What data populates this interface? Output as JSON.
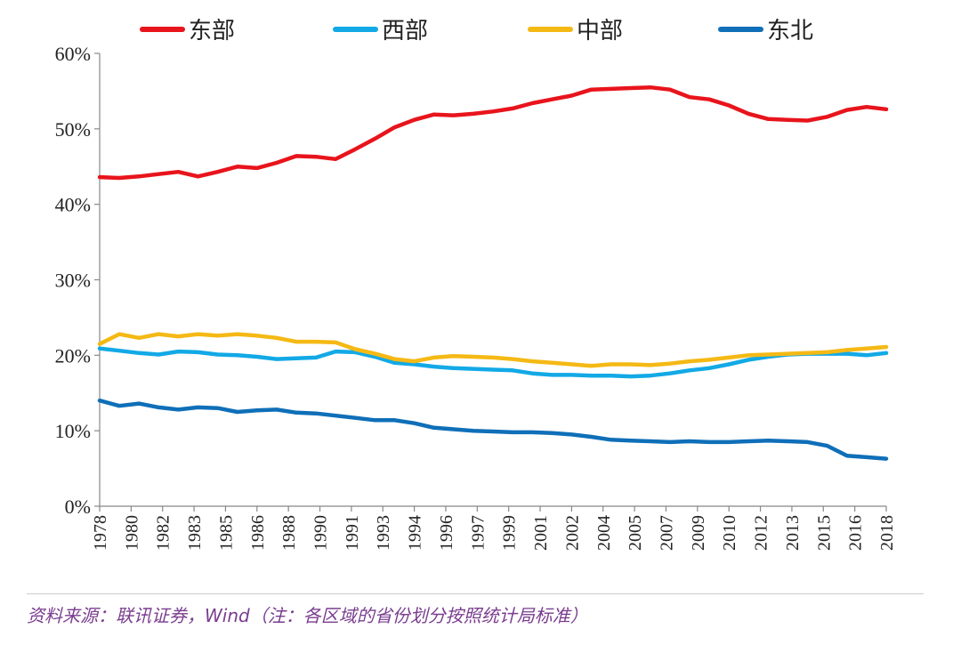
{
  "chart_data": {
    "type": "line",
    "title": "",
    "xlabel": "",
    "ylabel": "",
    "ylim": [
      0,
      60
    ],
    "y_ticks": [
      0,
      10,
      20,
      30,
      40,
      50,
      60
    ],
    "y_tick_labels": [
      "0%",
      "10%",
      "20%",
      "30%",
      "40%",
      "50%",
      "60%"
    ],
    "x_tick_labels": [
      "1978",
      "1980",
      "1982",
      "1983",
      "1985",
      "1986",
      "1988",
      "1990",
      "1991",
      "1993",
      "1994",
      "1996",
      "1997",
      "1999",
      "2001",
      "2002",
      "2004",
      "2005",
      "2007",
      "2009",
      "2010",
      "2012",
      "2013",
      "2015",
      "2016",
      "2018"
    ],
    "legend_position": "top",
    "x": [
      1978,
      1979,
      1980,
      1981,
      1982,
      1983,
      1984,
      1985,
      1986,
      1987,
      1988,
      1989,
      1990,
      1991,
      1992,
      1993,
      1994,
      1995,
      1996,
      1997,
      1998,
      1999,
      2000,
      2001,
      2002,
      2003,
      2004,
      2005,
      2006,
      2007,
      2008,
      2009,
      2010,
      2011,
      2012,
      2013,
      2014,
      2015,
      2016,
      2017,
      2018
    ],
    "series": [
      {
        "name": "东部",
        "color": "#e8141c",
        "values": [
          43.6,
          43.5,
          43.7,
          44.0,
          44.3,
          43.7,
          44.3,
          45.0,
          44.8,
          45.5,
          46.4,
          46.3,
          46.0,
          47.3,
          48.7,
          50.2,
          51.2,
          51.9,
          51.8,
          52.0,
          52.3,
          52.7,
          53.4,
          53.9,
          54.4,
          55.2,
          55.3,
          55.4,
          55.5,
          55.2,
          54.2,
          53.9,
          53.1,
          52.0,
          51.3,
          51.2,
          51.1,
          51.6,
          52.5,
          52.9,
          52.6
        ]
      },
      {
        "name": "西部",
        "color": "#12a9e6",
        "values": [
          20.9,
          20.6,
          20.3,
          20.1,
          20.5,
          20.4,
          20.1,
          20.0,
          19.8,
          19.5,
          19.6,
          19.7,
          20.5,
          20.4,
          19.8,
          19.0,
          18.8,
          18.5,
          18.3,
          18.2,
          18.1,
          18.0,
          17.6,
          17.4,
          17.4,
          17.3,
          17.3,
          17.2,
          17.3,
          17.6,
          18.0,
          18.3,
          18.8,
          19.4,
          19.8,
          20.1,
          20.2,
          20.2,
          20.2,
          20.0,
          20.3
        ]
      },
      {
        "name": "中部",
        "color": "#f5b915",
        "values": [
          21.5,
          22.8,
          22.3,
          22.8,
          22.5,
          22.8,
          22.6,
          22.8,
          22.6,
          22.3,
          21.8,
          21.8,
          21.7,
          20.8,
          20.2,
          19.5,
          19.2,
          19.7,
          19.9,
          19.8,
          19.7,
          19.5,
          19.2,
          19.0,
          18.8,
          18.6,
          18.8,
          18.8,
          18.7,
          18.9,
          19.2,
          19.4,
          19.7,
          20.0,
          20.1,
          20.2,
          20.3,
          20.4,
          20.7,
          20.9,
          21.1
        ]
      },
      {
        "name": "东北",
        "color": "#0f6fb8",
        "values": [
          14.0,
          13.3,
          13.6,
          13.1,
          12.8,
          13.1,
          13.0,
          12.5,
          12.7,
          12.8,
          12.4,
          12.3,
          12.0,
          11.7,
          11.4,
          11.4,
          11.0,
          10.4,
          10.2,
          10.0,
          9.9,
          9.8,
          9.8,
          9.7,
          9.5,
          9.2,
          8.8,
          8.7,
          8.6,
          8.5,
          8.6,
          8.5,
          8.5,
          8.6,
          8.7,
          8.6,
          8.5,
          8.0,
          6.7,
          6.5,
          6.3
        ]
      }
    ]
  },
  "source_note": "资料来源：联讯证券，Wind（注：各区域的省份划分按照统计局标准）"
}
